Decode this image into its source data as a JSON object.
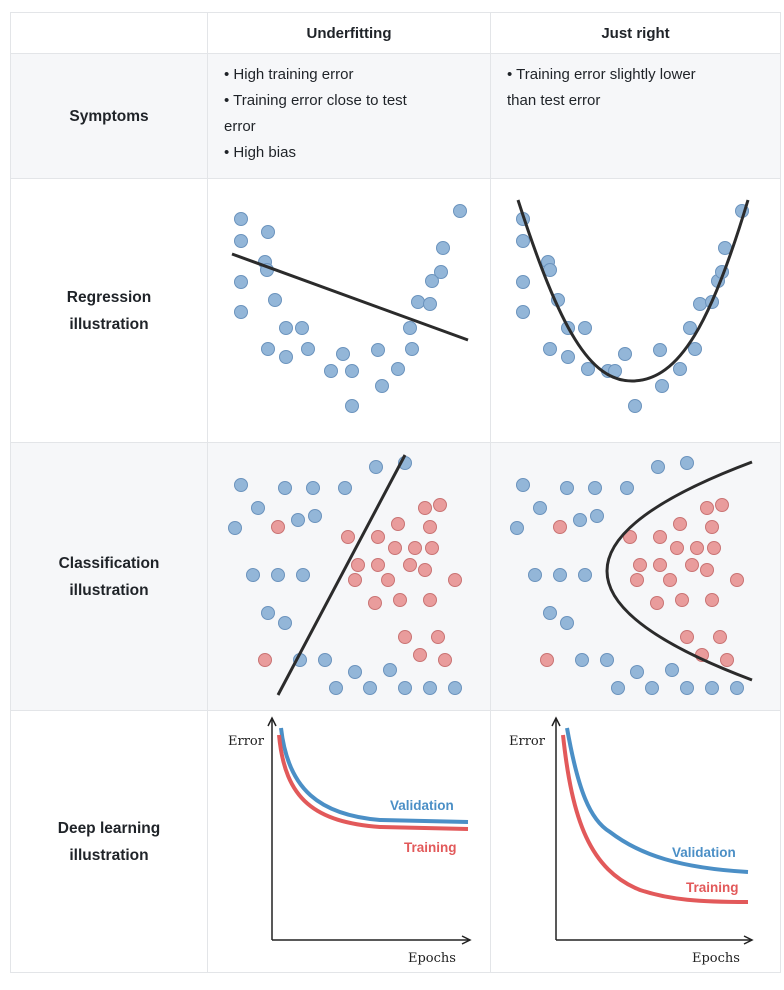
{
  "header": {
    "col_underfitting": "Underfitting",
    "col_just_right": "Just right"
  },
  "rows": {
    "symptoms": {
      "label": "Symptoms",
      "underfitting": [
        "• High training error",
        "• Training error close to test",
        "error",
        "• High bias"
      ],
      "just_right": [
        "• Training error slightly lower",
        "than test error"
      ]
    },
    "regression": {
      "label_line1": "Regression",
      "label_line2": "illustration"
    },
    "classification": {
      "label_line1": "Classification",
      "label_line2": "illustration"
    },
    "deep_learning": {
      "label_line1": "Deep learning",
      "label_line2": "illustration",
      "y_axis_label": "Error",
      "x_axis_label": "Epochs",
      "validation_label": "Validation",
      "training_label": "Training"
    }
  },
  "colors": {
    "blue_point": "#93b6d8",
    "red_point": "#e99c9c",
    "validation": "#4b8fc6",
    "training": "#e2595a",
    "model_line": "#2b2b2b"
  }
}
